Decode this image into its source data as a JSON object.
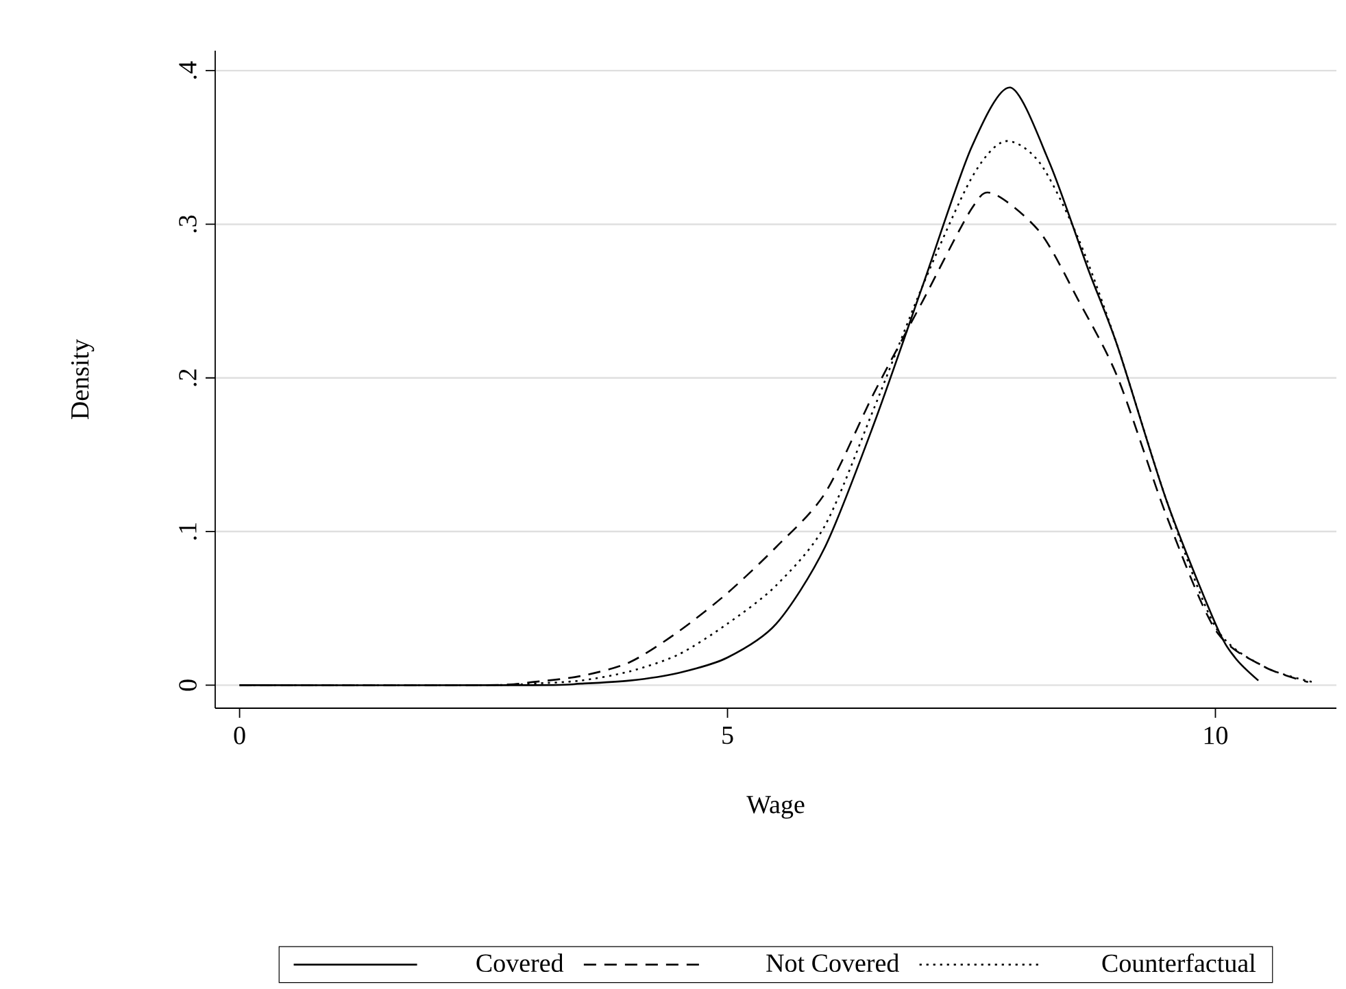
{
  "chart_data": {
    "type": "line",
    "xlabel": "Wage",
    "ylabel": "Density",
    "xlim": [
      -0.25,
      11.24
    ],
    "ylim": [
      -0.015,
      0.413
    ],
    "xticks": [
      0,
      5,
      10
    ],
    "yticks": [
      0,
      {
        "value": 0.1,
        "label": ".1"
      },
      {
        "value": 0.2,
        "label": ".2"
      },
      {
        "value": 0.3,
        "label": ".3"
      },
      {
        "value": 0.4,
        "label": ".4"
      }
    ],
    "grid": "y",
    "legend": "bottom",
    "series": [
      {
        "name": "Covered",
        "color": "#000000",
        "line_style": "solid",
        "x": [
          0,
          3,
          3.5,
          4,
          4.5,
          5,
          5.5,
          6,
          6.5,
          7,
          7.5,
          7.9,
          8.3,
          8.7,
          9,
          9.5,
          10,
          10.2,
          10.44
        ],
        "values": [
          0,
          0,
          0.001,
          0.003,
          0.008,
          0.018,
          0.04,
          0.09,
          0.17,
          0.26,
          0.35,
          0.389,
          0.34,
          0.27,
          0.22,
          0.12,
          0.04,
          0.018,
          0.003
        ]
      },
      {
        "name": "Not Covered",
        "color": "#000000",
        "line_style": "dashed",
        "x": [
          0,
          2.5,
          3,
          3.5,
          4,
          4.5,
          5,
          5.5,
          6,
          6.5,
          7,
          7.5,
          7.72,
          8.2,
          8.6,
          9,
          9.5,
          10,
          10.5,
          10.95
        ],
        "values": [
          0,
          0,
          0.002,
          0.006,
          0.015,
          0.035,
          0.06,
          0.09,
          0.125,
          0.19,
          0.25,
          0.31,
          0.32,
          0.295,
          0.25,
          0.2,
          0.11,
          0.036,
          0.012,
          0.002
        ]
      },
      {
        "name": "Counterfactual",
        "color": "#000000",
        "line_style": "dotted",
        "x": [
          0,
          2.5,
          3,
          3.5,
          4,
          4.5,
          5,
          5.5,
          6,
          6.5,
          7,
          7.5,
          7.84,
          8.2,
          8.6,
          9,
          9.5,
          10,
          10.5,
          11
        ],
        "values": [
          0,
          0,
          0.001,
          0.003,
          0.009,
          0.02,
          0.04,
          0.065,
          0.104,
          0.18,
          0.26,
          0.33,
          0.354,
          0.34,
          0.29,
          0.22,
          0.12,
          0.038,
          0.012,
          0.002
        ]
      }
    ]
  }
}
